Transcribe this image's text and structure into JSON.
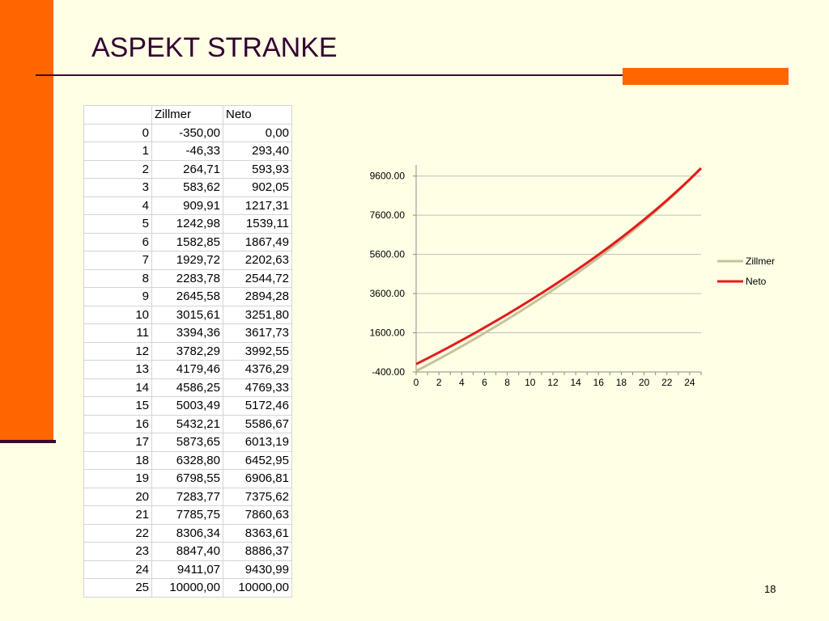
{
  "slide": {
    "title": "ASPEKT STRANKE",
    "page_number": "18",
    "colors": {
      "accent": "#FF6600",
      "background": "#FFFFE5",
      "rule": "#3C0A2E",
      "title": "#330033"
    }
  },
  "table": {
    "headers": [
      "",
      "Zillmer",
      "Neto"
    ],
    "rows": [
      [
        "0",
        "-350,00",
        "0,00"
      ],
      [
        "1",
        "-46,33",
        "293,40"
      ],
      [
        "2",
        "264,71",
        "593,93"
      ],
      [
        "3",
        "583,62",
        "902,05"
      ],
      [
        "4",
        "909,91",
        "1217,31"
      ],
      [
        "5",
        "1242,98",
        "1539,11"
      ],
      [
        "6",
        "1582,85",
        "1867,49"
      ],
      [
        "7",
        "1929,72",
        "2202,63"
      ],
      [
        "8",
        "2283,78",
        "2544,72"
      ],
      [
        "9",
        "2645,58",
        "2894,28"
      ],
      [
        "10",
        "3015,61",
        "3251,80"
      ],
      [
        "11",
        "3394,36",
        "3617,73"
      ],
      [
        "12",
        "3782,29",
        "3992,55"
      ],
      [
        "13",
        "4179,46",
        "4376,29"
      ],
      [
        "14",
        "4586,25",
        "4769,33"
      ],
      [
        "15",
        "5003,49",
        "5172,46"
      ],
      [
        "16",
        "5432,21",
        "5586,67"
      ],
      [
        "17",
        "5873,65",
        "6013,19"
      ],
      [
        "18",
        "6328,80",
        "6452,95"
      ],
      [
        "19",
        "6798,55",
        "6906,81"
      ],
      [
        "20",
        "7283,77",
        "7375,62"
      ],
      [
        "21",
        "7785,75",
        "7860,63"
      ],
      [
        "22",
        "8306,34",
        "8363,61"
      ],
      [
        "23",
        "8847,40",
        "8886,37"
      ],
      [
        "24",
        "9411,07",
        "9430,99"
      ],
      [
        "25",
        "10000,00",
        "10000,00"
      ]
    ]
  },
  "chart_data": {
    "type": "line",
    "x": [
      0,
      1,
      2,
      3,
      4,
      5,
      6,
      7,
      8,
      9,
      10,
      11,
      12,
      13,
      14,
      15,
      16,
      17,
      18,
      19,
      20,
      21,
      22,
      23,
      24,
      25
    ],
    "xticks": [
      "0",
      "2",
      "4",
      "6",
      "8",
      "10",
      "12",
      "14",
      "16",
      "18",
      "20",
      "22",
      "24"
    ],
    "yticks": [
      "-400.00",
      "1600.00",
      "3600.00",
      "5600.00",
      "7600.00",
      "9600.00"
    ],
    "ylim": [
      -400,
      10000
    ],
    "series": [
      {
        "name": "Zillmer",
        "color": "#C6C39A",
        "values": [
          -350,
          -46.33,
          264.71,
          583.62,
          909.91,
          1242.98,
          1582.85,
          1929.72,
          2283.78,
          2645.58,
          3015.61,
          3394.36,
          3782.29,
          4179.46,
          4586.25,
          5003.49,
          5432.21,
          5873.65,
          6328.8,
          6798.55,
          7283.77,
          7785.75,
          8306.34,
          8847.4,
          9411.07,
          10000.0
        ]
      },
      {
        "name": "Neto",
        "color": "#E31B1B",
        "values": [
          0,
          293.4,
          593.93,
          902.05,
          1217.31,
          1539.11,
          1867.49,
          2202.63,
          2544.72,
          2894.28,
          3251.8,
          3617.73,
          3992.55,
          4376.29,
          4769.33,
          5172.46,
          5586.67,
          6013.19,
          6452.95,
          6906.81,
          7375.62,
          7860.63,
          8363.61,
          8886.37,
          9430.99,
          10000.0
        ]
      }
    ],
    "legend": "right",
    "grid": "horizontal"
  }
}
